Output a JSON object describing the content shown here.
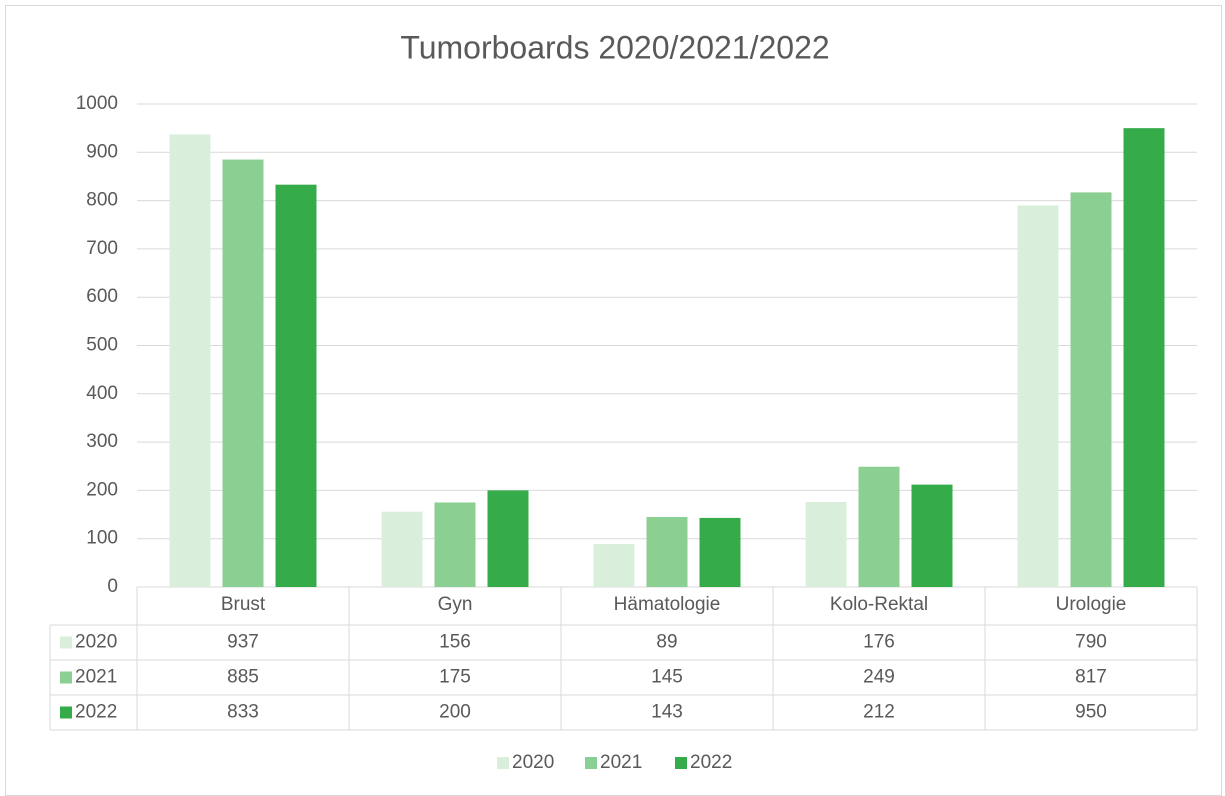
{
  "chart_data": {
    "type": "bar",
    "title": "Tumorboards 2020/2021/2022",
    "categories": [
      "Brust",
      "Gyn",
      "Hämatologie",
      "Kolo-Rektal",
      "Urologie"
    ],
    "series": [
      {
        "name": "2020",
        "color": "#d9efdb",
        "values": [
          937,
          156,
          89,
          176,
          790
        ]
      },
      {
        "name": "2021",
        "color": "#8bcf92",
        "values": [
          885,
          175,
          145,
          249,
          817
        ]
      },
      {
        "name": "2022",
        "color": "#35ab4a",
        "values": [
          833,
          200,
          143,
          212,
          950
        ]
      }
    ],
    "ylim": [
      0,
      1000
    ],
    "yticks": [
      0,
      100,
      200,
      300,
      400,
      500,
      600,
      700,
      800,
      900,
      1000
    ],
    "grid": true,
    "data_table": true,
    "legend": "bottom"
  }
}
